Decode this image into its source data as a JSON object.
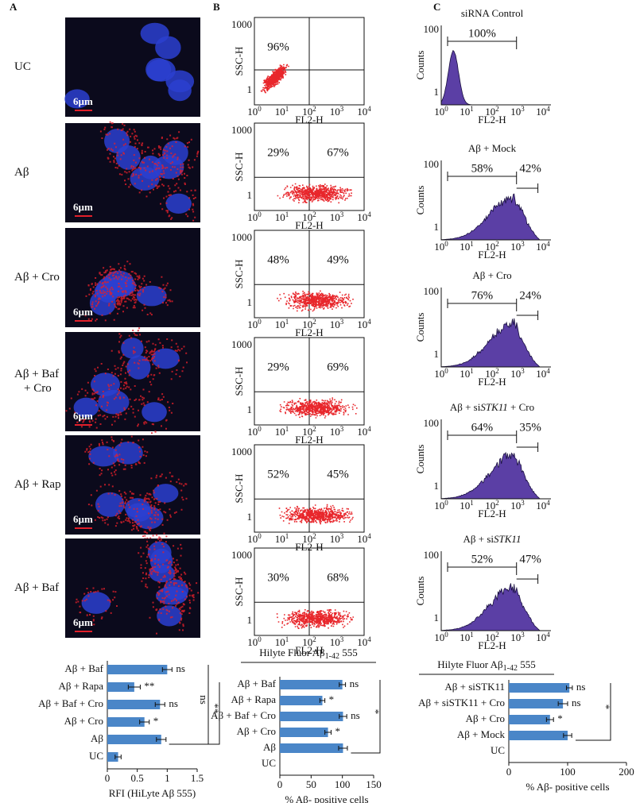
{
  "panel_labels": [
    "A",
    "B",
    "C"
  ],
  "panel_a": {
    "conditions": [
      [
        "UC"
      ],
      [
        "Aβ"
      ],
      [
        "Aβ + Cro"
      ],
      [
        "Aβ + Baf",
        "+ Cro"
      ],
      [
        "Aβ + Rap"
      ],
      [
        "Aβ + Baf"
      ]
    ],
    "scale_bar": "6µm"
  },
  "panel_b": {
    "y_axis_label": "SSC-H",
    "x_axis_label": "FL2-H",
    "tick_base": "10",
    "tick_exponents": [
      "0",
      "1",
      "2",
      "3",
      "4"
    ],
    "y_tick_labels": [
      "1000",
      "1"
    ],
    "plots": [
      {
        "left": "96%"
      },
      {
        "left": "29%",
        "right": "67%"
      },
      {
        "left": "48%",
        "right": "49%"
      },
      {
        "left": "29%",
        "right": "69%"
      },
      {
        "left": "52%",
        "right": "45%"
      },
      {
        "left": "30%",
        "right": "68%"
      }
    ],
    "caption": [
      "Hilyte Fluor Aβ",
      "1-42",
      " 555"
    ]
  },
  "panel_c": {
    "y_axis_label": "Counts",
    "x_axis_label": "FL2-H",
    "tick_base": "10",
    "tick_exponents": [
      "0",
      "1",
      "2",
      "3",
      "4"
    ],
    "y_tick_labels": [
      "100",
      "1"
    ],
    "plots": [
      {
        "title": [
          {
            "text": "siRNA Control"
          }
        ],
        "left": "100%"
      },
      {
        "title": [
          {
            "text": "Aβ + Mock"
          }
        ],
        "left": "58%",
        "right": "42%"
      },
      {
        "title": [
          {
            "text": "Aβ + Cro"
          }
        ],
        "left": "76%",
        "right": "24%"
      },
      {
        "title": [
          {
            "text": "Aβ + si"
          },
          {
            "text": "STK11",
            "italic": true
          },
          {
            "text": " + Cro"
          }
        ],
        "left": "64%",
        "right": "35%"
      },
      {
        "title": [
          {
            "text": "Aβ + si"
          },
          {
            "text": "STK11",
            "italic": true
          }
        ],
        "left": "52%",
        "right": "47%"
      }
    ],
    "caption": [
      "Hilyte Fluor Aβ",
      "1-42",
      " 555"
    ]
  },
  "chart_data": [
    {
      "type": "bar",
      "orientation": "horizontal",
      "color": "#4a86c8",
      "categories": [
        "Aβ + Baf",
        "Aβ + Rapa",
        "Aβ + Baf + Cro",
        "Aβ + Cro",
        "Aβ",
        "UC"
      ],
      "values": [
        1.0,
        0.45,
        0.88,
        0.62,
        0.9,
        0.18
      ],
      "errors": [
        0.08,
        0.1,
        0.08,
        0.08,
        0.08,
        0.05
      ],
      "significance": [
        "ns",
        "**",
        "ns",
        "*",
        null,
        null
      ],
      "bracket_labels": [
        "ns",
        "**"
      ],
      "xlim": [
        0,
        1.5
      ],
      "xticks": [
        0,
        0.5,
        1,
        1.5
      ],
      "xlabel": "RFI (HiLyte Aβ 555)"
    },
    {
      "type": "bar",
      "orientation": "horizontal",
      "color": "#4a86c8",
      "categories": [
        "Aβ + Baf",
        "Aβ + Rapa",
        "Aβ + Baf + Cro",
        "Aβ + Cro",
        "Aβ",
        "UC"
      ],
      "values": [
        100,
        68,
        101,
        77,
        101,
        0
      ],
      "errors": [
        5,
        4,
        6,
        5,
        7,
        0
      ],
      "significance": [
        "ns",
        "*",
        "ns",
        "*",
        null,
        null
      ],
      "bracket_labels": [
        "*"
      ],
      "xlim": [
        0,
        150
      ],
      "xticks": [
        0,
        50,
        100,
        150
      ],
      "xlabel": "% Aβ- positive cells"
    },
    {
      "type": "bar",
      "orientation": "horizontal",
      "color": "#4a86c8",
      "categories": [
        "Aβ + siSTK11",
        "Aβ + siSTK11 + Cro",
        "Aβ + Cro",
        "Aβ + Mock",
        "UC"
      ],
      "values": [
        103,
        92,
        70,
        100,
        0
      ],
      "errors": [
        5,
        8,
        6,
        7,
        0
      ],
      "significance": [
        "ns",
        "ns",
        "*",
        null,
        null
      ],
      "bracket_labels": [
        "*"
      ],
      "xlim": [
        0,
        200
      ],
      "xticks": [
        0,
        100,
        200
      ],
      "xlabel": "% Aβ- positive cells"
    }
  ]
}
